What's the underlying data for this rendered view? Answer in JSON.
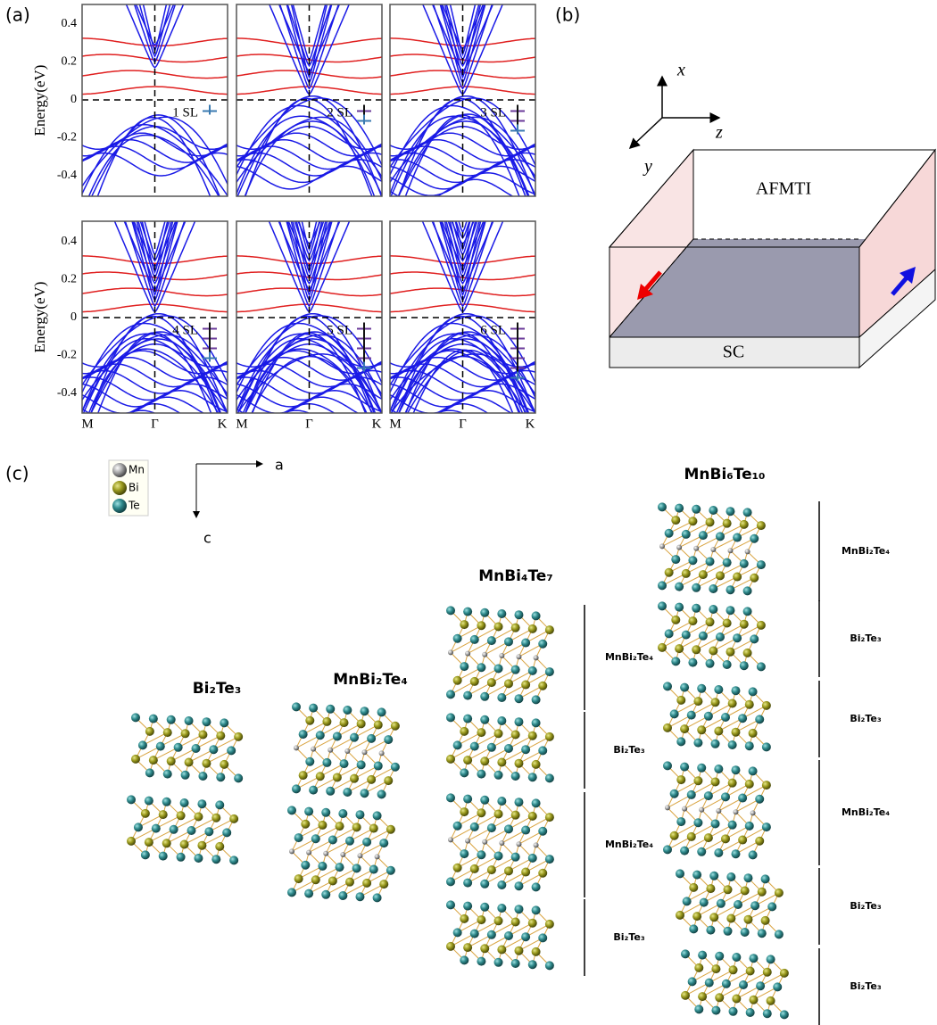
{
  "panel_a": {
    "label": "(a)",
    "y_axis_label": "Energy(eV)",
    "y_ticks": [
      "0.4",
      "0.2",
      "0",
      "-0.2",
      "-0.4"
    ],
    "k_labels": [
      "M",
      "Γ",
      "K"
    ],
    "subplots": [
      "1 SL",
      "2 SL",
      "3 SL",
      "4 SL",
      "5 SL",
      "6 SL"
    ]
  },
  "panel_b": {
    "label": "(b)",
    "axes": [
      "x",
      "y",
      "z"
    ],
    "top_layer": "AFMTI",
    "substrate": "SC"
  },
  "panel_c": {
    "label": "(c)",
    "legend": [
      "Mn",
      "Bi",
      "Te"
    ],
    "axes": [
      "a",
      "c"
    ],
    "structures": [
      {
        "title": "Bi₂Te₃"
      },
      {
        "title": "MnBi₂Te₄"
      },
      {
        "title": "MnBi₄Te₇",
        "layers": [
          "MnBi₂Te₄",
          "Bi₂Te₃",
          "MnBi₂Te₄",
          "Bi₂Te₃"
        ]
      },
      {
        "title": "MnBi₆Te₁₀",
        "layers": [
          "MnBi₂Te₄",
          "Bi₂Te₃",
          "Bi₂Te₃",
          "MnBi₂Te₄",
          "Bi₂Te₃",
          "Bi₂Te₃"
        ]
      }
    ]
  }
}
